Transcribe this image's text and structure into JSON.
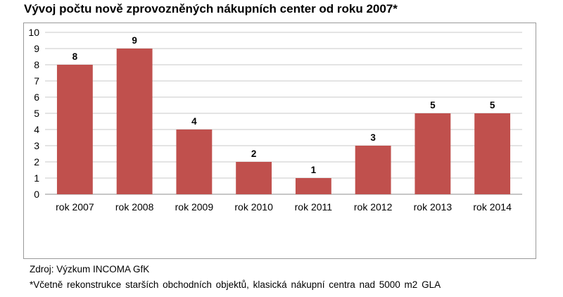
{
  "title": "Vývoj počtu nově zprovozněných nákupních center od roku 2007*",
  "source": "Zdroj: Výzkum INCOMA GfK",
  "footnote": "*Včetně rekonstrukce starších obchodních objektů, klasická nákupní centra nad 5000 m2 GLA",
  "chart_data": {
    "type": "bar",
    "categories": [
      "rok 2007",
      "rok 2008",
      "rok 2009",
      "rok 2010",
      "rok 2011",
      "rok 2012",
      "rok 2013",
      "rok 2014"
    ],
    "values": [
      8,
      9,
      4,
      2,
      1,
      3,
      5,
      5
    ],
    "ylim": [
      0,
      10
    ],
    "yticks": [
      0,
      1,
      2,
      3,
      4,
      5,
      6,
      7,
      8,
      9,
      10
    ],
    "grid": true,
    "data_labels": true,
    "bar_color": "#c0504d",
    "grid_color": "#c8c8c8",
    "legend": "none"
  }
}
